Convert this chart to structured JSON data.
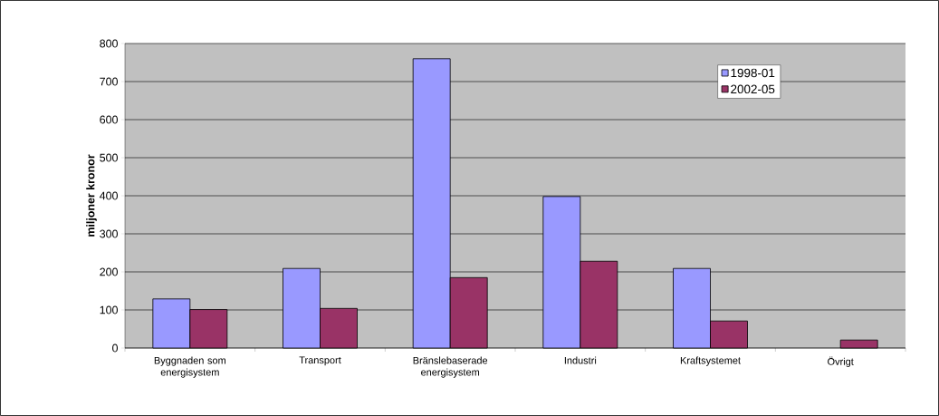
{
  "chart_data": {
    "type": "bar",
    "ylabel": "**miljoner kronor**",
    "categories": [
      "Byggnaden som energisystem",
      "Transport",
      "Bränslebaserade energisystem",
      "Industri",
      "Kraftsystemet",
      "Övrigt"
    ],
    "series": [
      {
        "name": "1998-01",
        "color": "#9999ff",
        "values": [
          129,
          209,
          760,
          398,
          209,
          null
        ]
      },
      {
        "name": "2002-05",
        "color": "#993366",
        "values": [
          101,
          104,
          185,
          228,
          71,
          21
        ]
      }
    ],
    "ylim": [
      0,
      800
    ],
    "yticks": [
      0,
      100,
      200,
      300,
      400,
      500,
      600,
      700,
      800
    ],
    "grid": "y",
    "legend": "top right"
  }
}
